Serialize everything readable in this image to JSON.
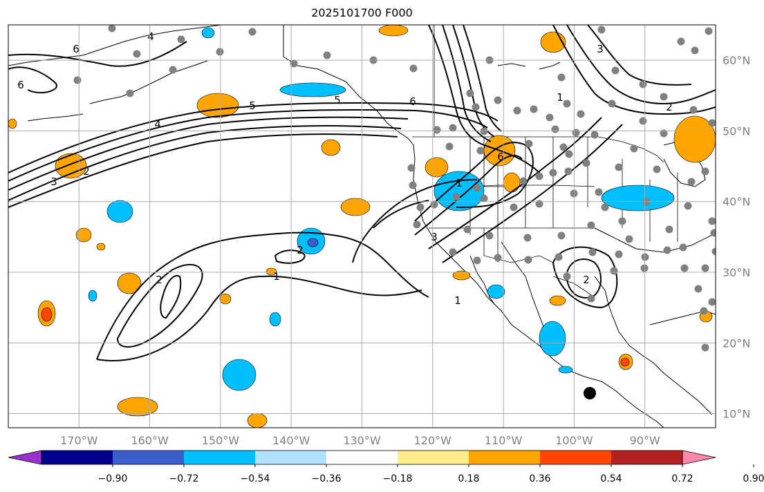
{
  "title": "2025101700 F000",
  "map": {
    "lon_range": [
      -180,
      -80
    ],
    "lat_range": [
      8,
      65
    ],
    "lon_ticks": [
      {
        "lon": -170,
        "label": "170°W"
      },
      {
        "lon": -160,
        "label": "160°W"
      },
      {
        "lon": -150,
        "label": "150°W"
      },
      {
        "lon": -140,
        "label": "140°W"
      },
      {
        "lon": -130,
        "label": "130°W"
      },
      {
        "lon": -120,
        "label": "120°W"
      },
      {
        "lon": -110,
        "label": "110°W"
      },
      {
        "lon": -100,
        "label": "100°W"
      },
      {
        "lon": -90,
        "label": "90°W"
      }
    ],
    "lat_ticks": [
      {
        "lat": 60,
        "label": "60°N"
      },
      {
        "lat": 50,
        "label": "50°N"
      },
      {
        "lat": 40,
        "label": "40°N"
      },
      {
        "lat": 30,
        "label": "30°N"
      },
      {
        "lat": 20,
        "label": "20°N"
      },
      {
        "lat": 10,
        "label": "10°N"
      }
    ],
    "contour_labels": [
      "6",
      "4",
      "6",
      "5",
      "3",
      "2",
      "4",
      "5",
      "6",
      "1",
      "2",
      "1",
      "6",
      "3",
      "2",
      "2",
      "1",
      "3",
      "2",
      "1"
    ],
    "colors": {
      "contour": "#000000",
      "station": "#808080",
      "grid": "#aaaaaa",
      "orange": "#ffa500",
      "dark_orange": "#ff4500",
      "cyan": "#00bfff",
      "blue": "#3a5fcd"
    }
  },
  "colorbar": {
    "colors": [
      "#9932cc",
      "#00008b",
      "#3a5fcd",
      "#00bfff",
      "#b0e2ff",
      "#ffffff",
      "#ffec8b",
      "#ffa500",
      "#ff4500",
      "#b22222",
      "#ff88aa"
    ],
    "labels": [
      "−0.90",
      "−0.72",
      "−0.54",
      "−0.36",
      "−0.18",
      "0.18",
      "0.36",
      "0.54",
      "0.72",
      "0.90"
    ]
  }
}
